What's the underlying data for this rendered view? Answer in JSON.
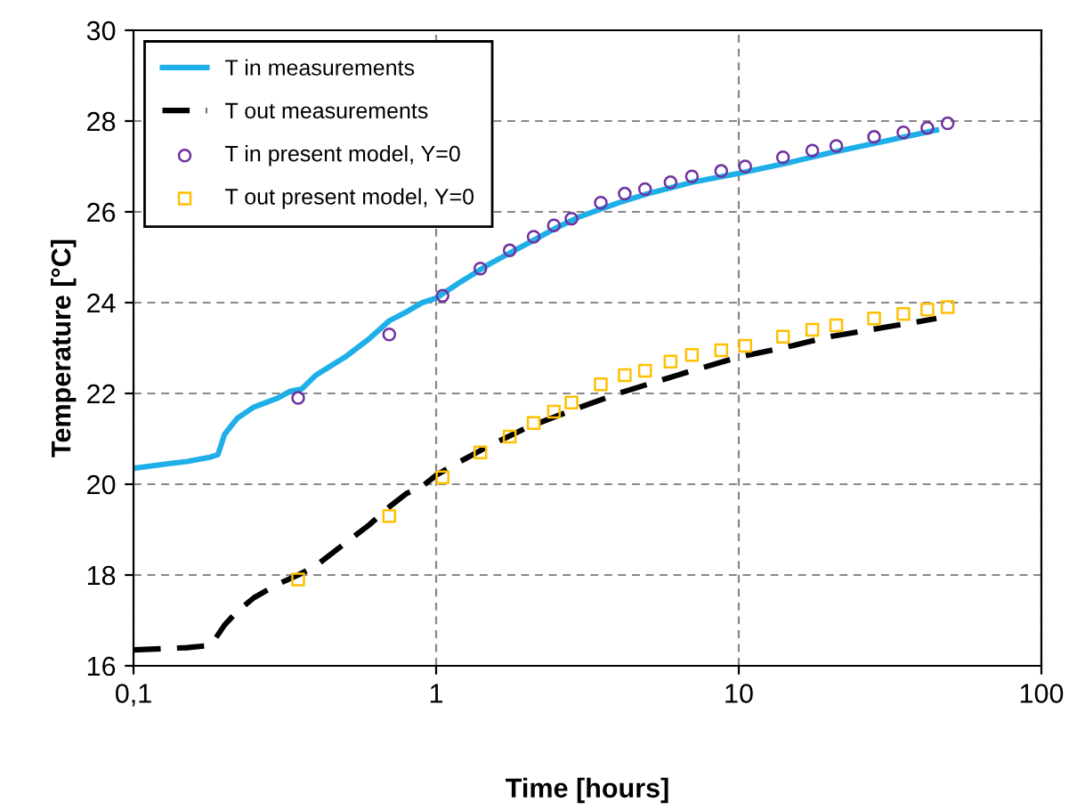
{
  "chart_data": {
    "type": "line",
    "xlabel": "Time [hours]",
    "ylabel": "Temperature [°C]",
    "log": "x",
    "xlim": [
      0.1,
      100
    ],
    "ylim": [
      16,
      30
    ],
    "xticks": [
      {
        "value": 0.1,
        "label": "0,1"
      },
      1,
      10,
      100
    ],
    "yticks": [
      16,
      18,
      20,
      22,
      24,
      26,
      28,
      30
    ],
    "grid": true,
    "legend": "top left",
    "series": [
      {
        "name": "T in measurements",
        "line_style": "solid",
        "marker": "none",
        "color": "#1eaee8",
        "x": [
          0.1,
          0.13,
          0.15,
          0.18,
          0.19,
          0.2,
          0.22,
          0.25,
          0.3,
          0.33,
          0.36,
          0.4,
          0.5,
          0.6,
          0.7,
          0.8,
          0.9,
          1.0,
          1.2,
          1.5,
          2,
          2.5,
          3,
          4,
          5,
          7,
          10,
          15,
          20,
          30,
          45
        ],
        "values": [
          20.35,
          20.45,
          20.5,
          20.6,
          20.65,
          21.1,
          21.45,
          21.7,
          21.9,
          22.05,
          22.1,
          22.4,
          22.8,
          23.2,
          23.6,
          23.8,
          24.0,
          24.1,
          24.45,
          24.85,
          25.3,
          25.65,
          25.9,
          26.2,
          26.4,
          26.65,
          26.85,
          27.1,
          27.3,
          27.55,
          27.8
        ]
      },
      {
        "name": "T out measurements",
        "line_style": "dashed",
        "marker": "none",
        "color": "#000000",
        "x": [
          0.1,
          0.15,
          0.18,
          0.2,
          0.22,
          0.25,
          0.3,
          0.35,
          0.4,
          0.5,
          0.6,
          0.7,
          0.8,
          0.9,
          1.0,
          1.2,
          1.5,
          2,
          3,
          4,
          5,
          7,
          10,
          15,
          20,
          30,
          45
        ],
        "values": [
          16.35,
          16.4,
          16.45,
          16.9,
          17.2,
          17.5,
          17.8,
          18.0,
          18.2,
          18.7,
          19.1,
          19.5,
          19.8,
          19.95,
          20.2,
          20.5,
          20.85,
          21.25,
          21.7,
          22.0,
          22.2,
          22.5,
          22.8,
          23.05,
          23.25,
          23.45,
          23.65
        ]
      },
      {
        "name": "T in present model, Y=0",
        "type": "scatter",
        "marker": "circle",
        "color": "#7030a0",
        "x": [
          0.35,
          0.7,
          1.05,
          1.4,
          1.75,
          2.1,
          2.45,
          2.8,
          3.5,
          4.2,
          4.9,
          5.95,
          7,
          8.75,
          10.5,
          14,
          17.5,
          21,
          28,
          35,
          42,
          49
        ],
        "values": [
          21.9,
          23.3,
          24.15,
          24.75,
          25.15,
          25.45,
          25.7,
          25.85,
          26.2,
          26.4,
          26.5,
          26.65,
          26.78,
          26.9,
          27.0,
          27.2,
          27.35,
          27.45,
          27.65,
          27.75,
          27.85,
          27.95
        ]
      },
      {
        "name": "T out present model, Y=0",
        "type": "scatter",
        "marker": "square",
        "color": "#ffc000",
        "x": [
          0.35,
          0.7,
          1.05,
          1.4,
          1.75,
          2.1,
          2.45,
          2.8,
          3.5,
          4.2,
          4.9,
          5.95,
          7,
          8.75,
          10.5,
          14,
          17.5,
          21,
          28,
          35,
          42,
          49
        ],
        "values": [
          17.9,
          19.3,
          20.15,
          20.7,
          21.05,
          21.35,
          21.6,
          21.8,
          22.2,
          22.4,
          22.5,
          22.7,
          22.85,
          22.95,
          23.05,
          23.25,
          23.4,
          23.5,
          23.65,
          23.75,
          23.85,
          23.9
        ]
      }
    ]
  }
}
